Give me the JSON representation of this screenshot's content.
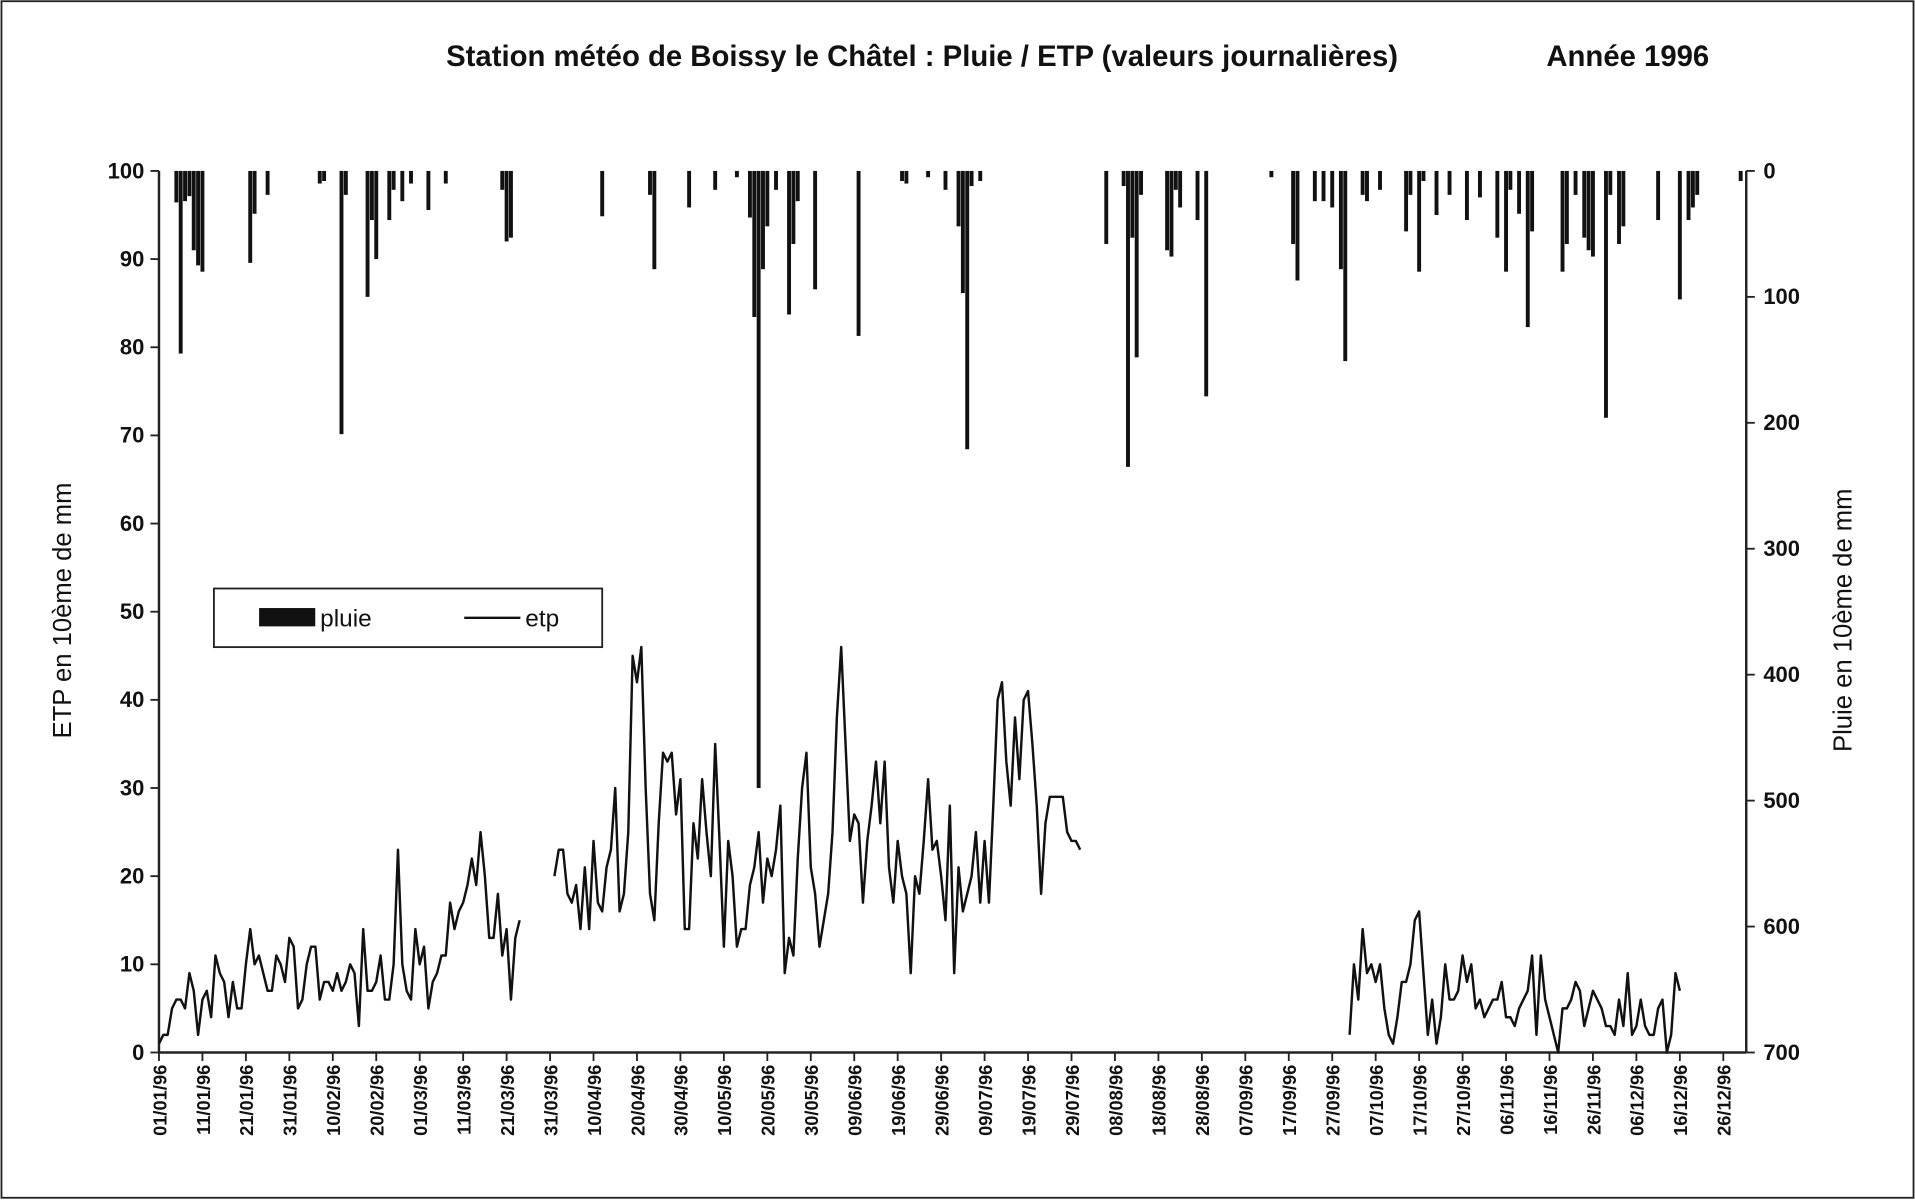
{
  "chart_data": {
    "type": "combo",
    "title": "Station météo de Boissy le Châtel : Pluie / ETP (valeurs journalières)",
    "subtitle": "Année 1996",
    "y_label": "ETP en 10ème de mm",
    "y2_label": "Pluie en 10ème de mm",
    "ylim": [
      0,
      100
    ],
    "yticks": [
      0,
      10,
      20,
      30,
      40,
      50,
      60,
      70,
      80,
      90,
      100
    ],
    "y2lim": [
      700,
      0
    ],
    "y2ticks": [
      0,
      100,
      200,
      300,
      400,
      500,
      600,
      700
    ],
    "grid": false,
    "categories": [
      "01/01/96",
      null,
      null,
      null,
      null,
      null,
      null,
      null,
      null,
      null,
      "11/01/96",
      null,
      null,
      null,
      null,
      null,
      null,
      null,
      null,
      null,
      "21/01/96",
      null,
      null,
      null,
      null,
      null,
      null,
      null,
      null,
      null,
      "31/01/96",
      null,
      null,
      null,
      null,
      null,
      null,
      null,
      null,
      null,
      "10/02/96",
      null,
      null,
      null,
      null,
      null,
      null,
      null,
      null,
      null,
      "20/02/96",
      null,
      null,
      null,
      null,
      null,
      null,
      null,
      null,
      null,
      "01/03/96",
      null,
      null,
      null,
      null,
      null,
      null,
      null,
      null,
      null,
      "11/03/96",
      null,
      null,
      null,
      null,
      null,
      null,
      null,
      null,
      null,
      "21/03/96",
      null,
      null,
      null,
      null,
      null,
      null,
      null,
      null,
      null,
      "31/03/96",
      null,
      null,
      null,
      null,
      null,
      null,
      null,
      null,
      null,
      "10/04/96",
      null,
      null,
      null,
      null,
      null,
      null,
      null,
      null,
      null,
      "20/04/96",
      null,
      null,
      null,
      null,
      null,
      null,
      null,
      null,
      null,
      "30/04/96",
      null,
      null,
      null,
      null,
      null,
      null,
      null,
      null,
      null,
      "10/05/96",
      null,
      null,
      null,
      null,
      null,
      null,
      null,
      null,
      null,
      "20/05/96",
      null,
      null,
      null,
      null,
      null,
      null,
      null,
      null,
      null,
      "30/05/96",
      null,
      null,
      null,
      null,
      null,
      null,
      null,
      null,
      null,
      "09/06/96",
      null,
      null,
      null,
      null,
      null,
      null,
      null,
      null,
      null,
      "19/06/96",
      null,
      null,
      null,
      null,
      null,
      null,
      null,
      null,
      null,
      "29/06/96",
      null,
      null,
      null,
      null,
      null,
      null,
      null,
      null,
      null,
      "09/07/96",
      null,
      null,
      null,
      null,
      null,
      null,
      null,
      null,
      null,
      "19/07/96",
      null,
      null,
      null,
      null,
      null,
      null,
      null,
      null,
      null,
      "29/07/96",
      null,
      null,
      null,
      null,
      null,
      null,
      null,
      null,
      null,
      "08/08/96",
      null,
      null,
      null,
      null,
      null,
      null,
      null,
      null,
      null,
      "18/08/96",
      null,
      null,
      null,
      null,
      null,
      null,
      null,
      null,
      null,
      "28/08/96",
      null,
      null,
      null,
      null,
      null,
      null,
      null,
      null,
      null,
      "07/09/96",
      null,
      null,
      null,
      null,
      null,
      null,
      null,
      null,
      null,
      "17/09/96",
      null,
      null,
      null,
      null,
      null,
      null,
      null,
      null,
      null,
      "27/09/96",
      null,
      null,
      null,
      null,
      null,
      null,
      null,
      null,
      null,
      "07/10/96",
      null,
      null,
      null,
      null,
      null,
      null,
      null,
      null,
      null,
      "17/10/96",
      null,
      null,
      null,
      null,
      null,
      null,
      null,
      null,
      null,
      "27/10/96",
      null,
      null,
      null,
      null,
      null,
      null,
      null,
      null,
      null,
      "06/11/96",
      null,
      null,
      null,
      null,
      null,
      null,
      null,
      null,
      null,
      "16/11/96",
      null,
      null,
      null,
      null,
      null,
      null,
      null,
      null,
      null,
      "26/11/96",
      null,
      null,
      null,
      null,
      null,
      null,
      null,
      null,
      null,
      "06/12/96",
      null,
      null,
      null,
      null,
      null,
      null,
      null,
      null,
      null,
      "16/12/96",
      null,
      null,
      null,
      null,
      null,
      null,
      null,
      null,
      null,
      "26/12/96",
      null,
      null,
      null,
      null,
      null
    ],
    "series": [
      {
        "name": "pluie",
        "type": "bar",
        "axis": "y2",
        "color": "#111111",
        "values": [
          0,
          0,
          0,
          0,
          25,
          145,
          24,
          20,
          63,
          75,
          80,
          0,
          0,
          0,
          0,
          0,
          0,
          0,
          0,
          0,
          0,
          73,
          34,
          0,
          0,
          19,
          0,
          0,
          0,
          0,
          0,
          0,
          0,
          0,
          0,
          0,
          0,
          10,
          8,
          0,
          0,
          0,
          209,
          19,
          0,
          0,
          0,
          0,
          100,
          39,
          70,
          0,
          0,
          39,
          15,
          0,
          24,
          0,
          10,
          0,
          0,
          0,
          31,
          0,
          0,
          0,
          10,
          0,
          0,
          0,
          0,
          0,
          0,
          0,
          0,
          0,
          0,
          0,
          0,
          15,
          56,
          53,
          0,
          0,
          0,
          0,
          0,
          0,
          0,
          0,
          0,
          0,
          0,
          0,
          0,
          0,
          0,
          0,
          0,
          0,
          0,
          0,
          36,
          0,
          0,
          0,
          0,
          0,
          0,
          0,
          0,
          0,
          0,
          19,
          78,
          0,
          0,
          0,
          0,
          0,
          0,
          0,
          29,
          0,
          0,
          0,
          0,
          0,
          15,
          0,
          0,
          0,
          0,
          5,
          0,
          0,
          37,
          116,
          490,
          78,
          44,
          0,
          15,
          0,
          0,
          114,
          58,
          24,
          0,
          0,
          0,
          94,
          0,
          0,
          0,
          0,
          0,
          0,
          0,
          0,
          0,
          131,
          0,
          0,
          0,
          0,
          0,
          0,
          0,
          0,
          0,
          8,
          10,
          0,
          0,
          0,
          0,
          5,
          0,
          0,
          0,
          15,
          0,
          0,
          44,
          97,
          221,
          12,
          0,
          8,
          0,
          0,
          0,
          0,
          0,
          0,
          0,
          0,
          0,
          0,
          0,
          0,
          0,
          0,
          0,
          0,
          0,
          0,
          0,
          0,
          0,
          0,
          0,
          0,
          0,
          0,
          0,
          0,
          58,
          0,
          0,
          0,
          12,
          235,
          53,
          148,
          19,
          0,
          0,
          0,
          0,
          0,
          63,
          68,
          15,
          29,
          0,
          0,
          0,
          39,
          0,
          179,
          0,
          0,
          0,
          0,
          0,
          0,
          0,
          0,
          0,
          0,
          0,
          0,
          0,
          0,
          5,
          0,
          0,
          0,
          0,
          58,
          87,
          0,
          0,
          0,
          24,
          0,
          24,
          0,
          29,
          0,
          78,
          151,
          0,
          0,
          0,
          19,
          24,
          0,
          0,
          15,
          0,
          0,
          0,
          0,
          0,
          48,
          19,
          0,
          80,
          8,
          0,
          0,
          35,
          0,
          0,
          19,
          0,
          0,
          0,
          39,
          0,
          0,
          21,
          0,
          0,
          0,
          53,
          0,
          80,
          15,
          0,
          34,
          0,
          124,
          48,
          0,
          0,
          0,
          0,
          0,
          0,
          80,
          58,
          0,
          19,
          0,
          53,
          63,
          68,
          0,
          0,
          196,
          19,
          0,
          58,
          44,
          0,
          0,
          0,
          0,
          0,
          0,
          0,
          39,
          0,
          0,
          0,
          0,
          102,
          0,
          39,
          29,
          19,
          0,
          0,
          0,
          0,
          0,
          0,
          0,
          0,
          0,
          8,
          0
        ]
      },
      {
        "name": "etp",
        "type": "line",
        "axis": "y",
        "color": "#111111",
        "values": [
          1,
          2,
          2,
          5,
          6,
          6,
          5,
          9,
          7,
          2,
          6,
          7,
          4,
          11,
          9,
          8,
          4,
          8,
          5,
          5,
          10,
          14,
          10,
          11,
          9,
          7,
          7,
          11,
          10,
          8,
          13,
          12,
          5,
          6,
          10,
          12,
          12,
          6,
          8,
          8,
          7,
          9,
          7,
          8,
          10,
          9,
          3,
          14,
          7,
          7,
          8,
          11,
          6,
          6,
          10,
          23,
          10,
          7,
          6,
          14,
          10,
          12,
          5,
          8,
          9,
          11,
          11,
          17,
          14,
          16,
          17,
          19,
          22,
          19,
          25,
          20,
          13,
          13,
          18,
          11,
          14,
          6,
          13,
          15,
          null,
          null,
          null,
          null,
          null,
          null,
          null,
          20,
          23,
          23,
          18,
          17,
          19,
          14,
          21,
          14,
          24,
          17,
          16,
          21,
          23,
          30,
          16,
          18,
          25,
          45,
          42,
          46,
          30,
          18,
          15,
          26,
          34,
          33,
          34,
          27,
          31,
          14,
          14,
          26,
          22,
          31,
          25,
          20,
          35,
          24,
          12,
          24,
          20,
          12,
          14,
          14,
          19,
          21,
          25,
          17,
          22,
          20,
          23,
          28,
          9,
          13,
          11,
          22,
          30,
          34,
          21,
          18,
          12,
          15,
          18,
          25,
          38,
          46,
          35,
          24,
          27,
          26,
          17,
          24,
          28,
          33,
          26,
          33,
          21,
          17,
          24,
          20,
          18,
          9,
          20,
          18,
          24,
          31,
          23,
          24,
          20,
          15,
          28,
          9,
          21,
          16,
          18,
          20,
          25,
          17,
          24,
          17,
          28,
          40,
          42,
          33,
          28,
          38,
          31,
          40,
          41,
          35,
          28,
          18,
          26,
          29,
          29,
          29,
          29,
          25,
          24,
          24,
          23,
          null,
          null,
          null,
          null,
          null,
          null,
          null,
          null,
          null,
          null,
          null,
          null,
          null,
          null,
          null,
          null,
          null,
          null,
          null,
          null,
          null,
          null,
          null,
          null,
          null,
          null,
          null,
          null,
          null,
          null,
          null,
          null,
          null,
          null,
          null,
          null,
          null,
          null,
          null,
          null,
          null,
          null,
          null,
          null,
          null,
          null,
          null,
          null,
          null,
          null,
          null,
          null,
          null,
          null,
          null,
          null,
          null,
          null,
          null,
          null,
          null,
          2,
          10,
          6,
          14,
          9,
          10,
          8,
          10,
          5,
          2,
          1,
          4,
          8,
          8,
          10,
          15,
          16,
          9,
          2,
          6,
          1,
          4,
          10,
          6,
          6,
          7,
          11,
          8,
          10,
          5,
          6,
          4,
          5,
          6,
          6,
          8,
          4,
          4,
          3,
          5,
          6,
          7,
          11,
          2,
          11,
          6,
          4,
          2,
          0,
          5,
          5,
          6,
          8,
          7,
          3,
          5,
          7,
          6,
          5,
          3,
          3,
          2,
          6,
          3,
          9,
          2,
          3,
          6,
          3,
          2,
          2,
          5,
          6,
          0,
          2,
          9,
          7,
          null,
          null,
          null,
          null,
          null,
          null,
          null,
          null,
          null,
          null,
          null,
          null,
          null,
          null,
          null
        ]
      }
    ]
  }
}
